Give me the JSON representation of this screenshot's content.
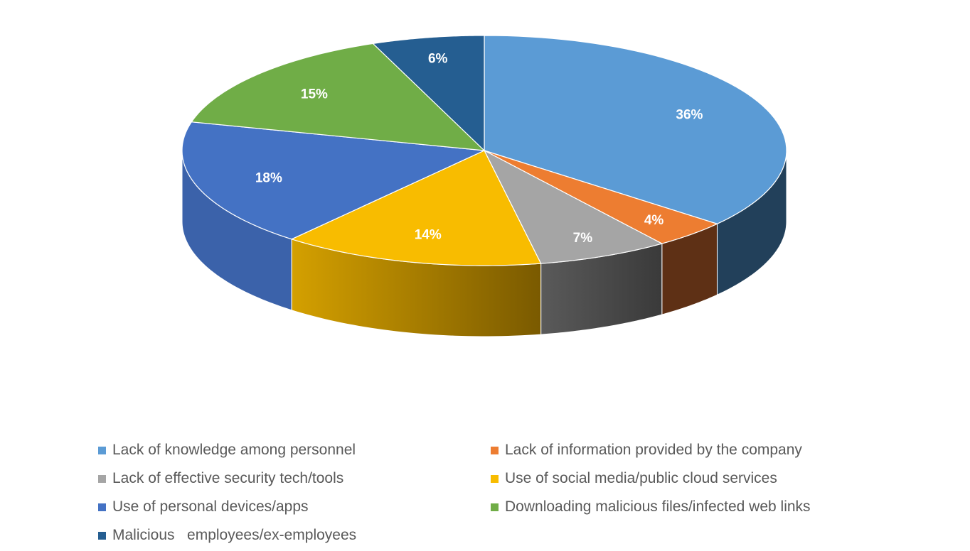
{
  "chart_data": {
    "type": "pie",
    "title": "",
    "legend_position": "bottom",
    "slices": [
      {
        "label": "Lack of knowledge among personnel",
        "value": 36,
        "display": "36%",
        "color": "#5B9BD5",
        "side": "#22405A"
      },
      {
        "label": "Lack of information provided by the company",
        "value": 4,
        "display": "4%",
        "color": "#ED7D31",
        "side": "#5E3015"
      },
      {
        "label": "Lack of effective security tech/tools",
        "value": 7,
        "display": "7%",
        "color": "#A5A5A5",
        "side": "#404040"
      },
      {
        "label": "Use of social media/public cloud services",
        "value": 14,
        "display": "14%",
        "color": "#F8BC00",
        "side": "#8A6600"
      },
      {
        "label": "Use of personal devices/apps",
        "value": 18,
        "display": "18%",
        "color": "#4472C4",
        "side": "#3B62AA"
      },
      {
        "label": "Downloading malicious files/infected web links",
        "value": 15,
        "display": "15%",
        "color": "#70AD47",
        "side": "#4E7A32"
      },
      {
        "label": "Malicious   employees/ex-employees",
        "value": 6,
        "display": "6%",
        "color": "#255E91",
        "side": "#1A4268"
      }
    ]
  }
}
